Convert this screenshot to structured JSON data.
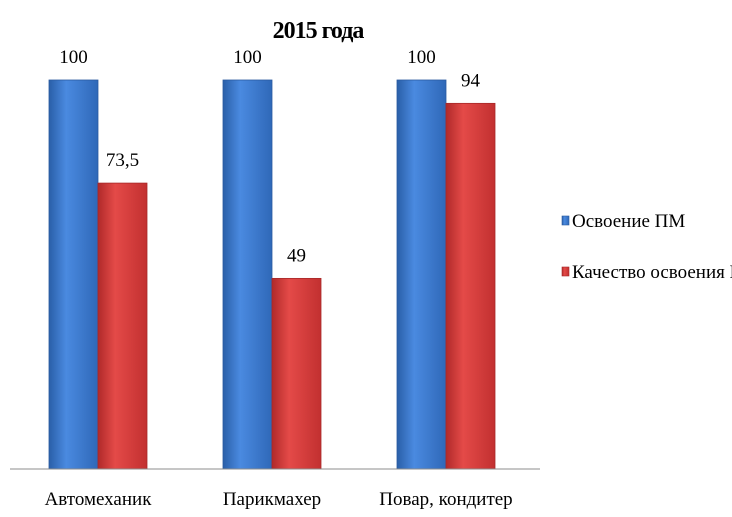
{
  "chart_data": {
    "type": "bar",
    "title": "2015 года",
    "categories": [
      "Автомеханик",
      "Парикмахер",
      "Повар, кондитер"
    ],
    "series": [
      {
        "name": "Освоение ПМ",
        "values": [
          100,
          100,
          100
        ],
        "labels": [
          "100",
          "100",
          "100"
        ],
        "color": "#3a76c8"
      },
      {
        "name": "Качество освоения ПМ",
        "values": [
          73.5,
          49,
          94
        ],
        "labels": [
          "73,5",
          "49",
          "94"
        ],
        "color": "#d63a3a"
      }
    ],
    "ylim": [
      0,
      100
    ],
    "grid": false,
    "legend_position": "right"
  }
}
